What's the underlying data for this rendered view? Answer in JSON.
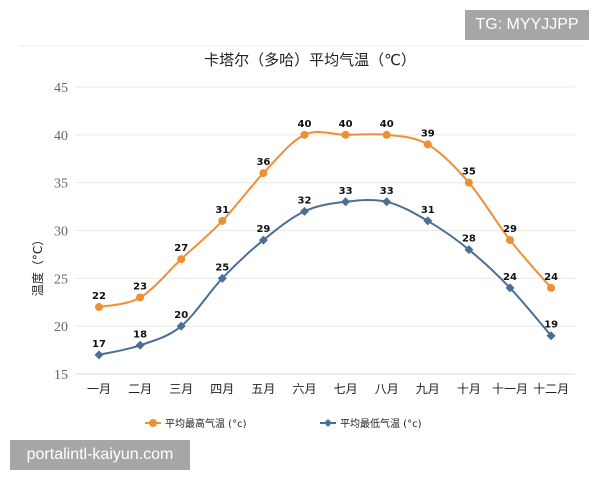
{
  "chart_data": {
    "type": "line",
    "title": "卡塔尔（多哈）平均气温（℃）",
    "xlabel": "",
    "ylabel": "温度（°C）",
    "categories": [
      "一月",
      "二月",
      "三月",
      "四月",
      "五月",
      "六月",
      "七月",
      "八月",
      "九月",
      "十月",
      "十一月",
      "十二月"
    ],
    "ylim": [
      15,
      45
    ],
    "yticks": [
      15,
      20,
      25,
      30,
      35,
      40,
      45
    ],
    "grid": true,
    "legend_position": "bottom",
    "series": [
      {
        "name": "平均最高气温 (°c)",
        "color": "#ef8f35",
        "marker": "circle",
        "values": [
          22,
          23,
          27,
          31,
          36,
          40,
          40,
          40,
          39,
          35,
          29,
          24
        ]
      },
      {
        "name": "平均最低气温 (°c)",
        "color": "#4a6f96",
        "marker": "diamond",
        "values": [
          17,
          18,
          20,
          25,
          29,
          32,
          33,
          33,
          31,
          28,
          24,
          19
        ]
      }
    ]
  },
  "watermarks": {
    "top": "TG: MYYJJPP",
    "bottom": "portalintl-kaiyun.com"
  }
}
